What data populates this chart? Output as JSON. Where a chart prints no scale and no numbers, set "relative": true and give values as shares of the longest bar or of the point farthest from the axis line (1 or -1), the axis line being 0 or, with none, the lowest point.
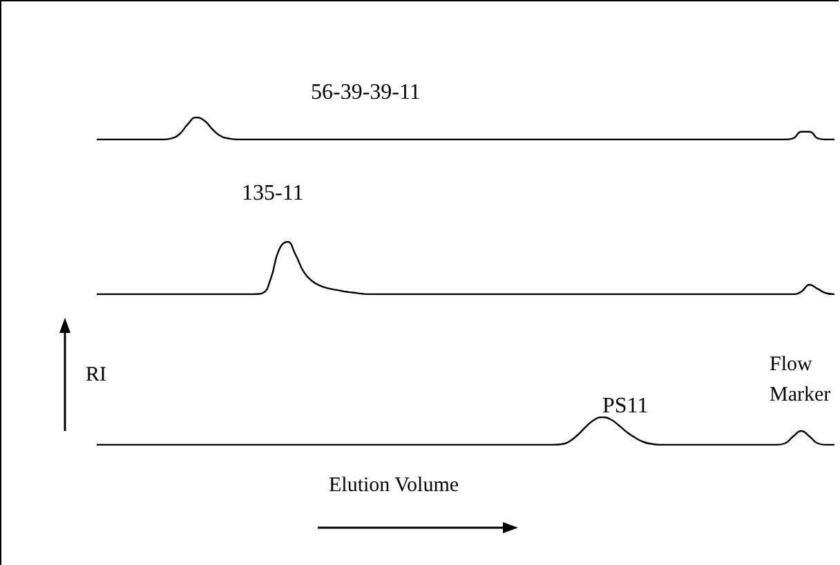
{
  "chart_data": [
    {
      "type": "line",
      "relative": true,
      "tick_labels": false,
      "categories": [
        null,
        null,
        null,
        null,
        null,
        null,
        null,
        null,
        null,
        null,
        null,
        null,
        null,
        null,
        null,
        null,
        null,
        null,
        null,
        null,
        null,
        null,
        null,
        null,
        null,
        null,
        null,
        null,
        null,
        null,
        null,
        null,
        null,
        null,
        null,
        null,
        null,
        null,
        null,
        null,
        null,
        null,
        null,
        null,
        null,
        null,
        null,
        null,
        null,
        null,
        null,
        null,
        null,
        null,
        null,
        null,
        null,
        null,
        null,
        null,
        null,
        null,
        null,
        null,
        null,
        null,
        null,
        null,
        null,
        null,
        null,
        null,
        null,
        null,
        null,
        null,
        null,
        null,
        null,
        null,
        null,
        null,
        null,
        null,
        null,
        null,
        null,
        null,
        null,
        null
      ],
      "series": [
        {
          "name": "56-39-39-11",
          "color": "#000000",
          "values": [
            0,
            0,
            0,
            0,
            0,
            0,
            0,
            0,
            0,
            0.05,
            0.25,
            0.7,
            1,
            0.85,
            0.45,
            0.15,
            0.04,
            0,
            0,
            0,
            0,
            0,
            0,
            0,
            0,
            0,
            0,
            0,
            0,
            0,
            0,
            0,
            0,
            0,
            0,
            0,
            0,
            0,
            0,
            0,
            0,
            0,
            0,
            0,
            0,
            0,
            0,
            0,
            0,
            0,
            0,
            0,
            0,
            0,
            0,
            0,
            0,
            0,
            0,
            0,
            0,
            0,
            0,
            0,
            0,
            0,
            0,
            0,
            0,
            0,
            0,
            0,
            0,
            0,
            0,
            0,
            0,
            0,
            0,
            0,
            0,
            0,
            0,
            0,
            0.05,
            0.35,
            0.35,
            0.05,
            0,
            0
          ]
        }
      ]
    },
    {
      "type": "line",
      "relative": true,
      "tick_labels": false,
      "categories": [
        null,
        null,
        null,
        null,
        null,
        null,
        null,
        null,
        null,
        null,
        null,
        null,
        null,
        null,
        null,
        null,
        null,
        null,
        null,
        null,
        null,
        null,
        null,
        null,
        null,
        null,
        null,
        null,
        null,
        null,
        null,
        null,
        null,
        null,
        null,
        null,
        null,
        null,
        null,
        null,
        null,
        null,
        null,
        null,
        null,
        null,
        null,
        null,
        null,
        null,
        null,
        null,
        null,
        null,
        null,
        null,
        null,
        null,
        null,
        null,
        null,
        null,
        null,
        null,
        null,
        null,
        null,
        null,
        null,
        null,
        null,
        null,
        null,
        null,
        null,
        null,
        null,
        null,
        null,
        null,
        null,
        null,
        null,
        null,
        null,
        null,
        null,
        null,
        null,
        null
      ],
      "series": [
        {
          "name": "135-11",
          "color": "#000000",
          "values": [
            0,
            0,
            0,
            0,
            0,
            0,
            0,
            0,
            0,
            0,
            0,
            0,
            0,
            0,
            0,
            0,
            0,
            0,
            0,
            0,
            0.02,
            0.3,
            0.85,
            1,
            0.75,
            0.42,
            0.25,
            0.16,
            0.11,
            0.08,
            0.05,
            0.03,
            0.01,
            0,
            0,
            0,
            0,
            0,
            0,
            0,
            0,
            0,
            0,
            0,
            0,
            0,
            0,
            0,
            0,
            0,
            0,
            0,
            0,
            0,
            0,
            0,
            0,
            0,
            0,
            0,
            0,
            0,
            0,
            0,
            0,
            0,
            0,
            0,
            0,
            0,
            0,
            0,
            0,
            0,
            0,
            0,
            0,
            0,
            0,
            0,
            0,
            0,
            0,
            0,
            0,
            0.05,
            0.18,
            0.1,
            0.02,
            0
          ]
        }
      ]
    },
    {
      "type": "line",
      "relative": true,
      "tick_labels": false,
      "xlabel": "Elution Volume",
      "ylabel": "RI",
      "annotations": [
        "Flow Marker"
      ],
      "categories": [
        null,
        null,
        null,
        null,
        null,
        null,
        null,
        null,
        null,
        null,
        null,
        null,
        null,
        null,
        null,
        null,
        null,
        null,
        null,
        null,
        null,
        null,
        null,
        null,
        null,
        null,
        null,
        null,
        null,
        null,
        null,
        null,
        null,
        null,
        null,
        null,
        null,
        null,
        null,
        null,
        null,
        null,
        null,
        null,
        null,
        null,
        null,
        null,
        null,
        null,
        null,
        null,
        null,
        null,
        null,
        null,
        null,
        null,
        null,
        null,
        null,
        null,
        null,
        null,
        null,
        null,
        null,
        null,
        null,
        null,
        null,
        null,
        null,
        null,
        null,
        null,
        null,
        null,
        null,
        null,
        null,
        null,
        null,
        null,
        null,
        null,
        null,
        null,
        null,
        null
      ],
      "series": [
        {
          "name": "PS11",
          "color": "#000000",
          "values": [
            0,
            0,
            0,
            0,
            0,
            0,
            0,
            0,
            0,
            0,
            0,
            0,
            0,
            0,
            0,
            0,
            0,
            0,
            0,
            0,
            0,
            0,
            0,
            0,
            0,
            0,
            0,
            0,
            0,
            0,
            0,
            0,
            0,
            0,
            0,
            0,
            0,
            0,
            0,
            0,
            0,
            0,
            0,
            0,
            0,
            0,
            0,
            0,
            0,
            0,
            0,
            0,
            0,
            0,
            0,
            0,
            0.02,
            0.12,
            0.35,
            0.65,
            0.9,
            1,
            0.92,
            0.7,
            0.45,
            0.25,
            0.1,
            0.03,
            0,
            0,
            0,
            0,
            0,
            0,
            0,
            0,
            0,
            0,
            0,
            0,
            0,
            0,
            0,
            0.05,
            0.3,
            0.5,
            0.3,
            0.05,
            0,
            0
          ]
        }
      ]
    }
  ]
}
